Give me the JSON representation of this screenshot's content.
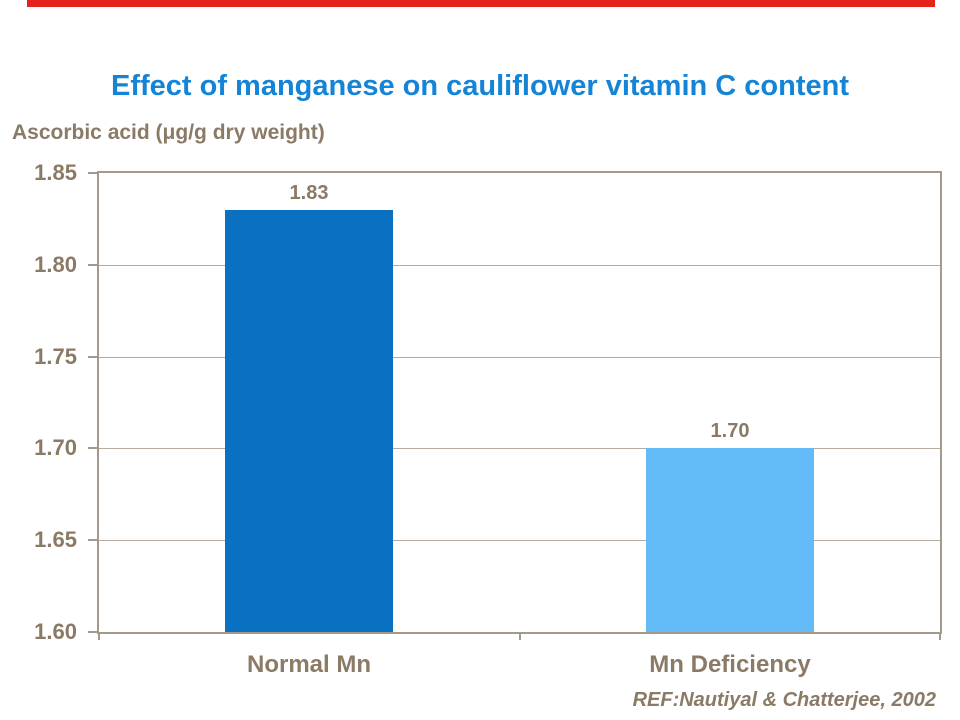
{
  "slide": {
    "accent_bar_color": "#e5231c",
    "background": "#ffffff"
  },
  "title": {
    "text": "Effect of manganese on cauliflower vitamin C content",
    "color": "#1484d7"
  },
  "chart_data": {
    "type": "bar",
    "title": "Effect of manganese on cauliflower vitamin C content",
    "ylabel": "Ascorbic acid (μg/g dry weight)",
    "xlabel": "",
    "categories": [
      "Normal Mn",
      "Mn Deficiency"
    ],
    "values": [
      1.83,
      1.7
    ],
    "data_labels": [
      "1.83",
      "1.70"
    ],
    "bar_colors": [
      "#0a70c2",
      "#63bbf8"
    ],
    "ylim": [
      1.6,
      1.85
    ],
    "ytick_interval": 0.05,
    "yticks": [
      1.85,
      1.8,
      1.75,
      1.7,
      1.65,
      1.6
    ],
    "grid": true,
    "legend": false
  },
  "footer": {
    "reference": "REF:Nautiyal & Chatterjee, 2002"
  },
  "theme": {
    "axis_text_color": "#8a7a66",
    "gridline_color": "#b5ab9e",
    "plot_border_color": "#a49a8c"
  }
}
